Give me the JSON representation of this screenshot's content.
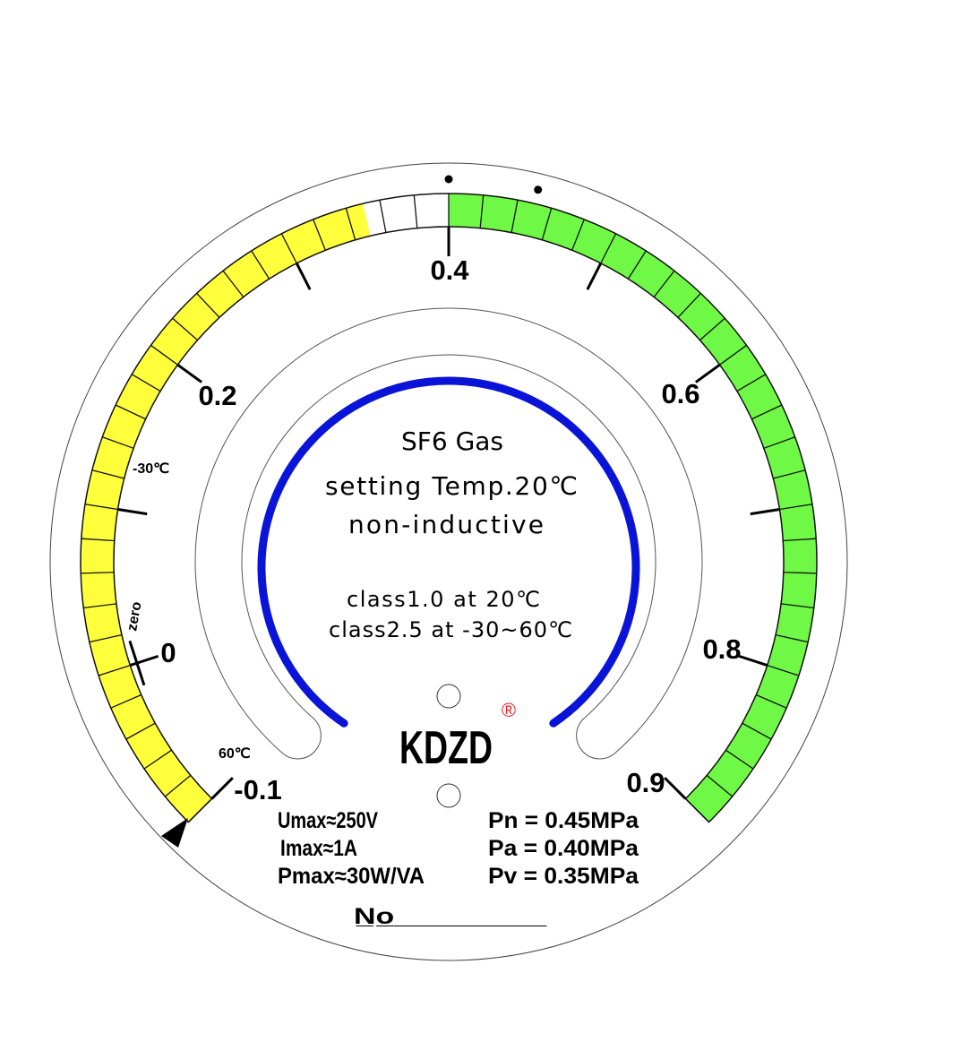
{
  "gauge": {
    "min": -0.1,
    "max": 0.9,
    "cell_step": 0.02,
    "major_ticks": [
      -0.1,
      0,
      0.1,
      0.2,
      0.3,
      0.4,
      0.5,
      0.6,
      0.7,
      0.8,
      0.9
    ],
    "tick_labels": {
      "m01": "-0.1",
      "zero": "0",
      "p02": "0.2",
      "p04": "0.4",
      "p06": "0.6",
      "p08": "0.8",
      "p09": "0.9"
    },
    "zones": [
      {
        "from": -0.1,
        "to": 0.35,
        "color": "#ffff3c"
      },
      {
        "from": 0.35,
        "to": 0.4,
        "color": "#ffffff"
      },
      {
        "from": 0.4,
        "to": 0.9,
        "color": "#70f846"
      }
    ],
    "setpoint_dots": [
      0.4,
      0.45
    ],
    "temp_low_label": "-30℃",
    "temp_high_label": "60℃",
    "zero_label": "zero"
  },
  "center": {
    "line1": "SF6 Gas",
    "line2": "setting Temp.20℃",
    "line3": "non-inductive",
    "line4": "class1.0 at 20℃",
    "line5": "class2.5 at -30~60℃"
  },
  "logo": {
    "text": "KDZD",
    "registered": "®",
    "registered_color": "#e82020"
  },
  "specs": {
    "umax": "Umax≈250V",
    "imax": "Imax≈1A",
    "pmax": "Pmax≈30W/VA",
    "pn": "Pn = 0.45MPa",
    "pa": "Pa = 0.40MPa",
    "pv": "Pv = 0.35MPa",
    "serial": "N̲o̲_________"
  },
  "colors": {
    "arc_blue": "#0a14d8"
  }
}
